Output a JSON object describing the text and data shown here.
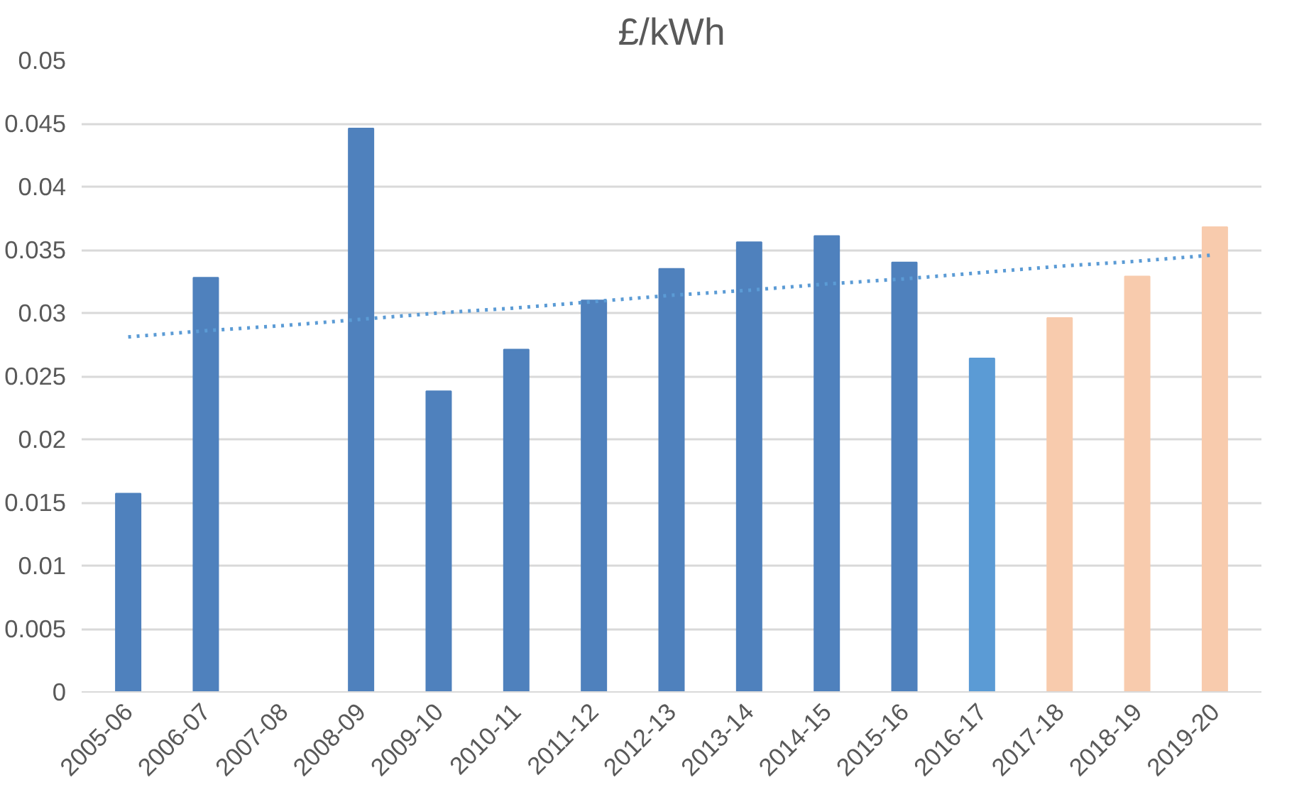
{
  "chart_data": {
    "type": "bar",
    "title": "£/kWh",
    "categories": [
      "2005-06",
      "2006-07",
      "2007-08",
      "2008-09",
      "2009-10",
      "2010-11",
      "2011-12",
      "2012-13",
      "2013-14",
      "2014-15",
      "2015-16",
      "2016-17",
      "2017-18",
      "2018-19",
      "2019-20"
    ],
    "series": [
      {
        "values": [
          0.0157,
          0.0328,
          null,
          0.0446,
          0.0238,
          0.0271,
          0.031,
          0.0335,
          0.0356,
          0.0361,
          0.034,
          0.0264,
          0.0296,
          0.0329,
          0.0368
        ],
        "colors": [
          "#4f81bd",
          "#4f81bd",
          "#4f81bd",
          "#4f81bd",
          "#4f81bd",
          "#4f81bd",
          "#4f81bd",
          "#4f81bd",
          "#4f81bd",
          "#4f81bd",
          "#4f81bd",
          "#5b9bd5",
          "#f8cbad",
          "#f8cbad",
          "#f8cbad"
        ]
      },
      {
        "type": "line",
        "values": [
          0.0281,
          0.0286,
          0.029,
          0.0295,
          0.03,
          0.0304,
          0.0309,
          0.0314,
          0.0318,
          0.0323,
          0.0327,
          0.0332,
          0.0337,
          0.0341,
          0.0346
        ],
        "color": "#5b9bd5",
        "line_style": "dotted"
      }
    ],
    "ylim": [
      0,
      0.05
    ],
    "yticks": [
      0,
      0.005,
      0.01,
      0.015,
      0.02,
      0.025,
      0.03,
      0.035,
      0.04,
      0.045,
      0.05
    ],
    "grid": "y"
  }
}
